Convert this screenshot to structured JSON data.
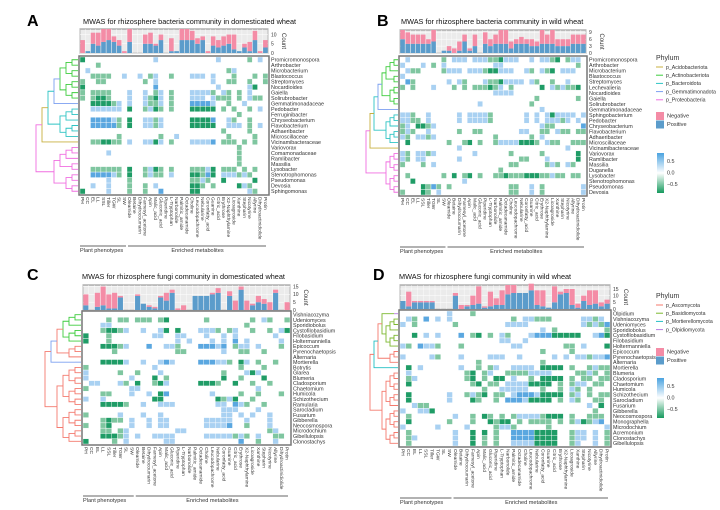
{
  "columns": [
    "PH",
    "CC",
    "EL",
    "LL",
    "SSL",
    "Tiller",
    "TGW",
    "SL",
    "SW",
    "Oleamide",
    "Betaine",
    "Dihydrocoumarin",
    "Farnesyl_acetone",
    "Apin",
    "Malic_acid",
    "Gluconic_acid",
    "Piperidine",
    "L-Tryptophan",
    "Narbonolide",
    "Palmitic_amide",
    "Octadecanamide",
    "Choline",
    "Leucodopachrome",
    "Nebularine",
    "Coronfatty_acid",
    "Guanine",
    "Citric_acid",
    "Erythrose",
    "X2-Naphthylamine",
    "Licoagroside",
    "Xanthine",
    "Stepharin",
    "Nicotyrine",
    "Allyrine",
    "Dihydroactinidiolide",
    "Protin"
  ],
  "groups": {
    "plant": "Plant phenotypes",
    "metabolites": "Enriched metabolites"
  },
  "count_label": "Count",
  "legends": {
    "bacteria": {
      "title": "Phylum",
      "items": [
        {
          "label": "p_Acidobacteriota",
          "color": "#c8b040"
        },
        {
          "label": "p_Actinobacteriota",
          "color": "#3dcc3d"
        },
        {
          "label": "p_Bacteroidota",
          "color": "#2ec4c4"
        },
        {
          "label": "p_Gemmatimonadota",
          "color": "#7b9ff0"
        },
        {
          "label": "p_Proteobacteria",
          "color": "#f06ee0"
        }
      ]
    },
    "fungi": {
      "title": "Phylum",
      "items": [
        {
          "label": "p_Ascomycota",
          "color": "#f47a6e"
        },
        {
          "label": "p_Basidiomycota",
          "color": "#7cb82f"
        },
        {
          "label": "p_Mortierellomycota",
          "color": "#22bfc4"
        },
        {
          "label": "p_Olpidiomycota",
          "color": "#b57be0"
        }
      ]
    },
    "sign": [
      {
        "label": "Negative",
        "color": "#f48ca6"
      },
      {
        "label": "Positive",
        "color": "#5b9ccb"
      }
    ],
    "scale": {
      "ticks": [
        "0.5",
        "0.0",
        "−0.5"
      ],
      "high": "#4aa3e0",
      "mid": "#ffffff",
      "low": "#169a5e"
    }
  },
  "cell_colors": {
    "B": "#5aa7e0",
    "b": "#a9d1f2",
    "g": "#7fc6a0",
    "G": "#1f9c66"
  },
  "chart_data": [
    {
      "type": "heatmap",
      "letter": "A",
      "title": "MWAS for rhizosphere bacteria community in domesticated wheat",
      "count_ticks": [
        0,
        5,
        10
      ],
      "count_max": 13,
      "rows": [
        "Promicromonospora",
        "Arthrobacter",
        "Microbacterium",
        "Blastococcus",
        "Streptomyces",
        "Nocardioides",
        "Gaiella",
        "Solirubrobacter",
        "Gemmatimonadaceae",
        "Pedobacter",
        "Ferruginibacter",
        "Chryseobacterium",
        "Flavobacterium",
        "Adhaeribacter",
        "Microscillaceae",
        "Vicinamibacteraceae",
        "Variovorax",
        "Comamonadaceae",
        "Ramlibacter",
        "Massilia",
        "Lysobacter",
        "Stenotrophomonas",
        "Pseudomonas",
        "Devosia",
        "Sphingomonas"
      ],
      "clades": [
        {
          "phylum": "p_Actinobacteriota",
          "n": 8,
          "color": "#3dcc3d"
        },
        {
          "phylum": "p_Gemmatimonadota",
          "n": 1,
          "color": "#7b9ff0"
        },
        {
          "phylum": "p_Bacteroidota",
          "n": 6,
          "color": "#2ec4c4"
        },
        {
          "phylum": "p_Acidobacteriota",
          "n": 1,
          "color": "#c8b040"
        },
        {
          "phylum": "p_Proteobacteria",
          "n": 9,
          "color": "#f06ee0"
        }
      ],
      "positive": [
        0,
        1,
        5,
        4,
        6,
        7,
        6,
        4,
        0,
        6,
        0,
        0,
        5,
        5,
        4,
        7,
        0,
        1,
        1,
        7,
        7,
        7,
        5,
        7,
        0,
        4,
        3,
        4,
        5,
        2,
        1,
        3,
        1,
        7,
        0,
        3
      ],
      "negative": [
        7,
        0,
        6,
        7,
        7,
        6,
        3,
        3,
        1,
        7,
        0,
        0,
        5,
        6,
        1,
        3,
        0,
        7,
        0,
        6,
        6,
        5,
        3,
        2,
        1,
        5,
        4,
        5,
        5,
        8,
        0,
        2,
        5,
        5,
        1,
        4
      ],
      "cells": [
        "G.............b...........b.....g.b.",
        "...g................................",
        ".b..........................gb......",
        "..gggg..b..b.gb..g...bbb.b...g...g.g",
        "g..gg.......g.b..........b..gg..g..g",
        "G.............B...........b.....bG..",
        "g.gggg...b..b.gb.g...bbbbg.bg.g.b...",
        "g.gGGg...b..bgGb.g...bbb.bggg.g.bgg.",
        "..GGGGgb.b..bggb.g...BBBBb..g..b....",
        "..bbbbbb.G..gbGg.g...GGGGG.g.g..g.b.",
        "..............................g.....",
        "..BBBBbg.G..bbgb.....GGGGB..bg..g...",
        "..BBBBBg.G..bbgb.....GGGGG..bbb.g.b.",
        "...........................g....g...",
        ".......g.......g..b.........g....g..",
        "..ggGGgg.b..bbGb.g...bbbbB.ggg.g.g..",
        "..............................g.....",
        ".....b........................g.....",
        "..............................g.....",
        "..............................g.....",
        "..gggggg.G..gbGg.g...gggbG.ggg.g.g..",
        "..BBBBbg.G..gbgg.b...GGgBG.bbbgbg...",
        ".....b...g...........ggbg..G.....G..",
        "..b..b...g..g.b......GGg.g....Gbg...",
        "G....b...g..g..B.....GG.........bg.."
      ]
    },
    {
      "type": "heatmap",
      "letter": "B",
      "title": "MWAS for rhizosphere bacteria community in wild wheat",
      "count_ticks": [
        0,
        3,
        6,
        9
      ],
      "count_max": 10,
      "rows": [
        "Promicromonospora",
        "Arthrobacter",
        "Microbacterium",
        "Blastococcus",
        "Streptomyces",
        "Lechevalieria",
        "Nocardioides",
        "Gaiella",
        "Solirubrobacter",
        "Gemmatimonadaceae",
        "Sphingobacterium",
        "Pedobacter",
        "Chryseobacterium",
        "Flavobacterium",
        "Adhaeribacter",
        "Microscillaceae",
        "Vicinamibacteraceae",
        "Variovorax",
        "Ramlibacter",
        "Massilia",
        "Duganella",
        "Lysobacter",
        "Stenotrophomonas",
        "Pseudomonas",
        "Devosia"
      ],
      "clades": [
        {
          "phylum": "p_Actinobacteriota",
          "n": 9,
          "color": "#3dcc3d"
        },
        {
          "phylum": "p_Gemmatimonadota",
          "n": 1,
          "color": "#7b9ff0"
        },
        {
          "phylum": "p_Bacteroidota",
          "n": 6,
          "color": "#2ec4c4"
        },
        {
          "phylum": "p_Acidobacteriota",
          "n": 1,
          "color": "#c8b040"
        },
        {
          "phylum": "p_Proteobacteria",
          "n": 8,
          "color": "#f06ee0"
        }
      ],
      "positive": [
        6,
        4,
        4,
        4,
        4,
        4,
        5,
        0,
        1,
        1,
        0,
        1,
        5,
        1,
        3,
        0,
        4,
        3,
        4,
        4,
        4,
        2,
        4,
        4,
        4,
        3,
        3,
        4,
        4,
        4,
        3,
        3,
        3,
        4,
        4,
        4
      ],
      "negative": [
        4,
        5,
        4,
        4,
        4,
        2,
        5,
        0,
        0,
        2,
        2,
        4,
        3,
        1,
        5,
        0,
        5,
        3,
        4,
        6,
        6,
        3,
        2,
        3,
        2,
        3,
        2,
        6,
        4,
        6,
        3,
        3,
        3,
        4,
        4,
        4
      ],
      "cells": [
        ".b......g.bbb.bbbggGbbb..b.bbgG.gbb.",
        "b...b.g.b.........bb..............g.",
        ".bgg....gbbb.bbbgGGbbb..bg.bgG.bbb..",
        "b...................................",
        ".Bg......b.bg...bggGbbbb.bg..g..b...",
        "g.g...b...g.g.gggGgb.g.....G.bgbggG.",
        "..................bbbb..............",
        "..........................g.......g.",
        "...............b.........g..........",
        "...........................b........",
        "bbg..b.....b.bbbbg......b.b.bGbbbb.b",
        "bbgg.b.....b.bbbbg......b.b.bbbgb.b.",
        "gb.GGgb....................bgg.....B",
        "gbg..b.....g..gg.......bb..gg.bgg.gg",
        "bg.bbgb...........g......g.b........",
        ".G.......g..gG.g..gbbbbGGGg.bgg..ggg",
        "...........b....................b...",
        "bg.bbgb.......b......g.....g......G.",
        "bg.bb......b...........gg...b.....G.",
        "g...g.b..............gg.....gbg.bg..",
        "...................g................",
        ".g......g.G.gG.g..ggGgggGGGggbgg.gg.",
        "..G.........b.......................",
        "....GgBg.g...........gg..b.g.......b",
        "g...Gg.b.............gg..b.g.......b"
      ]
    },
    {
      "type": "heatmap",
      "letter": "C",
      "title": "MWAS for rhizosphere fungi community in domesticated wheat",
      "count_ticks": [
        0,
        5,
        10,
        15
      ],
      "count_max": 16,
      "rows": [
        "Vishniacozyma",
        "Udeniomyces",
        "Sporidiobolus",
        "Cystofilobasidium",
        "Filobasidium",
        "Holtermanniella",
        "Epicoccum",
        "Pyrenochaetopsis",
        "Alternaria",
        "Mortierella",
        "Botrytis",
        "Glarea",
        "Blumeria",
        "Cladosporium",
        "Chaetomium",
        "Humicola",
        "Schizothecium",
        "Ramularia",
        "Sarocladium",
        "Fusarium",
        "Gibberella",
        "Neocosmospora",
        "Microdochium",
        "Gibellulopsis",
        "Clonostachys"
      ],
      "clades": [
        {
          "phylum": "p_Basidiomycota",
          "n": 6,
          "color": "#3dcc3d"
        },
        {
          "phylum": "p_Ascomycota",
          "n": 3,
          "color": "#f47a6e"
        },
        {
          "phylum": "p_Mortierellomycota",
          "n": 1,
          "color": "#7b9ff0"
        },
        {
          "phylum": "p_Ascomycota",
          "n": 15,
          "color": "#f47a6e"
        }
      ],
      "positive": [
        3,
        0,
        2,
        3,
        1,
        1,
        8,
        0,
        0,
        9,
        4,
        2,
        1,
        8,
        6,
        11,
        0,
        0,
        0,
        9,
        9,
        9,
        10,
        11,
        0,
        9,
        0,
        13,
        0,
        3,
        5,
        4,
        0,
        11,
        0,
        0
      ],
      "negative": [
        7,
        0,
        9,
        12,
        9,
        10,
        1,
        0,
        0,
        1,
        0,
        1,
        1,
        1,
        5,
        2,
        1,
        3,
        0,
        0,
        0,
        0,
        1,
        3,
        0,
        3,
        6,
        2,
        6,
        1,
        4,
        3,
        5,
        2,
        0,
        5
      ],
      "cells": [
        "....................................",
        "....g.gg.ggg.gG......g.......g.bg..g",
        "...bb.......................g.......",
        "...gGGgb..b..bG.G...bbbg.gb..g..g.bG",
        "G...g.......bb..bb...b..b.b......b..",
        "G...g...........b.b...b.b.B.b.....b.",
        "...GGGgb...B..bbg...BBBbB.gbb.b...g.",
        ".....g..........gg......b..gg..g....",
        "....................................",
        "...GGGGb..b..bBb....BBBbbg.Gb.g..g..",
        "g...........b..............g...g....",
        "b.....g..g...b..........g...bGb.....",
        "b.......b...G.g.........G..g...G....",
        ".bb...bg.G..gGb.....GGGg..G..g..g...",
        "g.......bb....................b.....",
        "...gg...b..b.GB.......b....g..g...g.",
        "b..b........GG.........GgbG..g......",
        "...GGGGg..b..bbb.......bb.Bbg..g....",
        "........................bbb...b.....",
        "g.....b...b..b..........bb.b.b..b...",
        "...gGgg.b..b.bb......bbbbb..b...b...",
        "g..gG...b..b.bb......bbbbB..g...b...",
        "...gg.gb........bb..............gb..",
        "...GGGgb.b..bbbb.....bbbbbgbg.b..gg.",
        "G....g.b......bb...........B..g..b.."
      ]
    },
    {
      "type": "heatmap",
      "letter": "D",
      "title": "MWAS for rhizosphere fungi community in wild wheat",
      "count_ticks": [
        0,
        5,
        10,
        15
      ],
      "count_max": 18,
      "rows": [
        "Olpidium",
        "Vishniacozyma",
        "Udeniomyces",
        "Sporidiobolus",
        "Cystofilobasidium",
        "Filobasidium",
        "Holtermanniella",
        "Epicoccum",
        "Pyrenochaetopsis",
        "Alternaria",
        "Mortierella",
        "Blumeria",
        "Cladosporium",
        "Chaetomium",
        "Humicola",
        "Schizothecium",
        "Sarocladium",
        "Fusarium",
        "Gibberella",
        "Neocosmospora",
        "Monographella",
        "Microdochium",
        "Acremonium",
        "Clonostachys",
        "Gibellulopsis"
      ],
      "clades": [
        {
          "phylum": "p_Olpidiomycota",
          "n": 1,
          "color": "#b57be0"
        },
        {
          "phylum": "p_Basidiomycota",
          "n": 6,
          "color": "#7cb82f"
        },
        {
          "phylum": "p_Ascomycota",
          "n": 3,
          "color": "#f47a6e"
        },
        {
          "phylum": "p_Mortierellomycota",
          "n": 1,
          "color": "#22bfc4"
        },
        {
          "phylum": "p_Ascomycota",
          "n": 14,
          "color": "#f47a6e"
        }
      ],
      "positive": [
        6,
        2,
        5,
        5,
        5,
        5,
        0,
        0,
        0,
        10,
        0,
        2,
        3,
        4,
        1,
        2,
        3,
        3,
        11,
        12,
        12,
        12,
        14,
        3,
        2,
        1,
        5,
        11,
        12,
        3,
        1,
        6,
        3,
        4,
        2,
        4
      ],
      "negative": [
        0,
        11,
        1,
        1,
        1,
        1,
        0,
        0,
        0,
        2,
        3,
        1,
        7,
        13,
        1,
        11,
        5,
        11,
        7,
        6,
        0,
        0,
        5,
        11,
        12,
        0,
        12,
        2,
        3,
        12,
        3,
        4,
        11,
        10,
        3,
        3
      ],
      "cells": [
        "........b...g.......................",
        ".bg.B.b.b..........g.bbggg.....bbgb.",
        "b.g......g........bbbb.........bgbgB",
        "........................b.g........g",
        "..G.b.b...B.gG.g.bg...bBBBGGGGG..bBG",
        ".................bb..b..............",
        "bg.Bbbg...g........bb.......gg.b...G",
        "........................g....g......",
        "b....bg...b....bbb..b.....b.b.bbgbbB",
        ".............g..........g...........",
        ".G.b......b..g.gb..bbbb.GGGG.g..gbgg",
        ".b.........gG.gb..ggggbbbb....ggbg.g",
        ".gb........gG.g.GG.b..g.GGGG.g.gg.gg",
        ".G..........gG.gg.bbbbGGGG.g.gbb.gg.",
        "..............g..bbbbb..g..g.bg.g...",
        ".G......b..gbgG.gg.bBBBbGGGG.gb.g.gg",
        ".G......b...Gg..g.BBBbGGGG.g.bg..gg.",
        "..bgg...........................b.G.",
        "b..bbG...........................g..",
        ".g.......b..g.Gg.g.gbbbbgGGG.g..ggg.",
        ".G......g...g..GgGG.g.gggg.g.gbGgbB.",
        "b.....b....b....gbbg.....g.........b",
        ".g.......b..G.G.g..BBBBGGGG..gbb.b.g",
        ".gb......b..G.g.g..BBBBGGGG..gbb.b.g",
        ".g.......b..G.g.g..bbbbGGGG..gb..b.g"
      ]
    }
  ]
}
